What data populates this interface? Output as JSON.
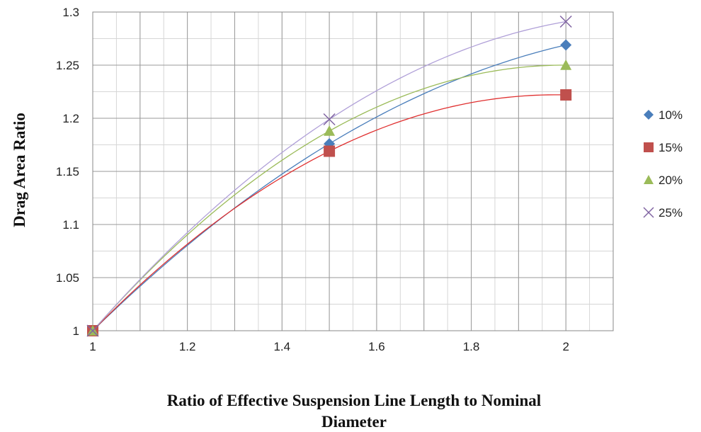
{
  "chart_data": {
    "type": "scatter",
    "title": "",
    "xlabel_lines": [
      "Ratio of Effective Suspension Line Length to Nominal",
      "Diameter"
    ],
    "ylabel": "Drag Area Ratio",
    "xlim": [
      1,
      2.1
    ],
    "ylim": [
      1,
      1.3
    ],
    "x_ticks": [
      1,
      1.2,
      1.4,
      1.6,
      1.8,
      2
    ],
    "x_tick_labels": [
      "1",
      "1.2",
      "1.4",
      "1.6",
      "1.8",
      "2"
    ],
    "y_ticks": [
      1,
      1.05,
      1.1,
      1.15,
      1.2,
      1.25,
      1.3
    ],
    "y_tick_labels": [
      "1",
      "1.05",
      "1.1",
      "1.15",
      "1.2",
      "1.25",
      "1.3"
    ],
    "x_minor_step": 0.05,
    "y_minor_step": 0.025,
    "grid": true,
    "legend_position": "right",
    "trendline": "polynomial",
    "series": [
      {
        "name": "10%",
        "marker": "diamond",
        "color": "#4a7ebb",
        "line_color": "#4a7ebb",
        "x": [
          1,
          1.5,
          2
        ],
        "y": [
          1.0,
          1.176,
          1.269
        ]
      },
      {
        "name": "15%",
        "marker": "square",
        "color": "#c0504d",
        "line_color": "#e03030",
        "x": [
          1,
          1.5,
          2
        ],
        "y": [
          1.0,
          1.169,
          1.222
        ]
      },
      {
        "name": "20%",
        "marker": "triangle",
        "color": "#9bbb59",
        "line_color": "#9bbb59",
        "x": [
          1,
          1.5,
          2
        ],
        "y": [
          1.0,
          1.188,
          1.25
        ]
      },
      {
        "name": "25%",
        "marker": "x",
        "color": "#8064a2",
        "line_color": "#b0a0d8",
        "x": [
          1,
          1.5,
          2
        ],
        "y": [
          1.0,
          1.199,
          1.291
        ]
      }
    ]
  }
}
